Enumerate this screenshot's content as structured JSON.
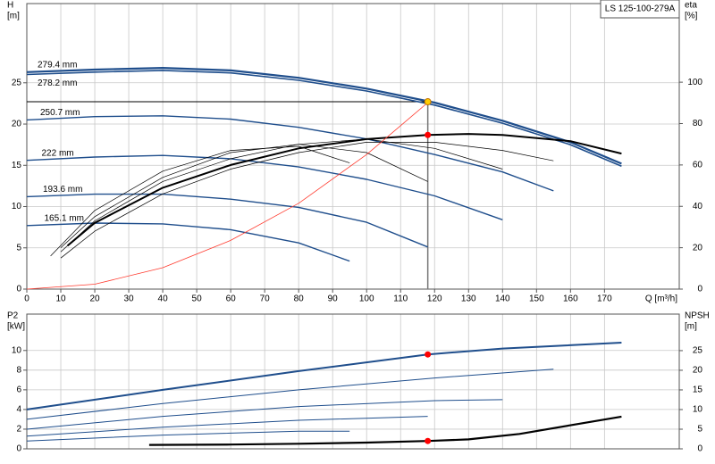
{
  "chart_data": [
    {
      "type": "line",
      "title": "LS 125-100-279A",
      "xlabel": "Q [m³/h]",
      "ylabel": "H",
      "yunit": "[m]",
      "y2label": "eta",
      "y2unit": "[%]",
      "xlim": [
        0,
        192
      ],
      "xticks": [
        0,
        10,
        20,
        30,
        40,
        50,
        60,
        70,
        80,
        90,
        100,
        110,
        120,
        130,
        140,
        150,
        160,
        170
      ],
      "ylim": [
        0,
        34.6
      ],
      "yticks": [
        0,
        5,
        10,
        15,
        20,
        25
      ],
      "y2lim": [
        0,
        138
      ],
      "y2ticks": [
        0,
        20,
        40,
        60,
        80,
        100
      ],
      "grid": true,
      "series": [
        {
          "name": "279.4 mm",
          "color": "#1f4e8c",
          "width": 2.2,
          "x": [
            0,
            20,
            40,
            60,
            80,
            100,
            120,
            140,
            160,
            175
          ],
          "values": [
            26.3,
            26.6,
            26.8,
            26.5,
            25.6,
            24.3,
            22.6,
            20.4,
            17.8,
            15.2
          ]
        },
        {
          "name": "278.2 mm",
          "color": "#1f4e8c",
          "width": 1.6,
          "x": [
            0,
            20,
            40,
            60,
            80,
            100,
            120,
            140,
            160,
            175
          ],
          "values": [
            26.0,
            26.3,
            26.5,
            26.2,
            25.3,
            24.0,
            22.3,
            20.1,
            17.5,
            14.9
          ]
        },
        {
          "name": "250.7 mm",
          "color": "#1f4e8c",
          "width": 1.4,
          "x": [
            0,
            20,
            40,
            60,
            80,
            100,
            120,
            140,
            155
          ],
          "values": [
            20.5,
            20.9,
            21.0,
            20.6,
            19.6,
            18.2,
            16.3,
            14.2,
            11.9
          ]
        },
        {
          "name": "222 mm",
          "color": "#1f4e8c",
          "width": 1.4,
          "x": [
            0,
            20,
            40,
            60,
            80,
            100,
            120,
            140
          ],
          "values": [
            15.6,
            16.0,
            16.2,
            15.8,
            14.8,
            13.3,
            11.3,
            8.4
          ]
        },
        {
          "name": "193.6 mm",
          "color": "#1f4e8c",
          "width": 1.4,
          "x": [
            0,
            20,
            40,
            60,
            80,
            100,
            118
          ],
          "values": [
            11.2,
            11.5,
            11.5,
            10.9,
            9.9,
            8.1,
            5.1
          ]
        },
        {
          "name": "165.1 mm",
          "color": "#1f4e8c",
          "width": 1.4,
          "x": [
            0,
            20,
            40,
            60,
            80,
            95
          ],
          "values": [
            7.7,
            8.0,
            7.9,
            7.2,
            5.6,
            3.4
          ]
        },
        {
          "color": "#000000",
          "width": 2,
          "axis": "y2",
          "x": [
            12,
            20,
            40,
            60,
            80,
            100,
            118,
            130,
            140,
            160,
            175
          ],
          "values": [
            21,
            32,
            49,
            60,
            68,
            72.5,
            74.5,
            75,
            74.5,
            71.5,
            65.5
          ]
        },
        {
          "color": "#000000",
          "width": 0.7,
          "axis": "y2",
          "x": [
            10,
            20,
            40,
            60,
            80,
            100,
            120,
            140,
            155
          ],
          "values": [
            15,
            28,
            46,
            58,
            66,
            71,
            71,
            67,
            62
          ]
        },
        {
          "color": "#000000",
          "width": 0.7,
          "axis": "y2",
          "x": [
            10,
            20,
            40,
            60,
            80,
            100,
            120,
            140
          ],
          "values": [
            18,
            33,
            52,
            63,
            70,
            72.5,
            68,
            58
          ]
        },
        {
          "color": "#000000",
          "width": 0.7,
          "axis": "y2",
          "x": [
            10,
            20,
            40,
            60,
            80,
            100,
            118
          ],
          "values": [
            20,
            35,
            54,
            66,
            70,
            66,
            52
          ]
        },
        {
          "color": "#000000",
          "width": 0.7,
          "axis": "y2",
          "x": [
            7,
            20,
            40,
            60,
            80,
            95
          ],
          "values": [
            16,
            38,
            57,
            67,
            69,
            61
          ]
        },
        {
          "color": "#ff3b2f",
          "width": 0.8,
          "x": [
            0,
            20,
            40,
            60,
            80,
            100,
            118
          ],
          "values": [
            0,
            0.6,
            2.6,
            5.9,
            10.4,
            16.3,
            22.6
          ]
        }
      ],
      "duty_point": {
        "q": 118,
        "h": 22.7,
        "eta": 74.5
      }
    },
    {
      "type": "line",
      "ylabel": "P2",
      "yunit": "[kW]",
      "y2label": "NPSH",
      "y2unit": "[m]",
      "xlim": [
        0,
        192
      ],
      "xticks": [
        0,
        10,
        20,
        30,
        40,
        50,
        60,
        70,
        80,
        90,
        100,
        110,
        120,
        130,
        140,
        150,
        160,
        170
      ],
      "ylim": [
        0,
        13.7
      ],
      "yticks": [
        0,
        2,
        4,
        6,
        8,
        10
      ],
      "y2lim": [
        0,
        34.3
      ],
      "y2ticks": [
        0,
        5,
        10,
        15,
        20,
        25
      ],
      "grid": true,
      "series": [
        {
          "color": "#1f4e8c",
          "width": 2,
          "x": [
            0,
            40,
            80,
            118,
            140,
            175
          ],
          "values": [
            4.0,
            6.0,
            7.9,
            9.6,
            10.2,
            10.8
          ]
        },
        {
          "color": "#1f4e8c",
          "width": 1,
          "x": [
            0,
            40,
            80,
            120,
            155
          ],
          "values": [
            3.0,
            4.6,
            6.0,
            7.2,
            8.1
          ]
        },
        {
          "color": "#1f4e8c",
          "width": 1,
          "x": [
            0,
            40,
            80,
            120,
            140
          ],
          "values": [
            2.0,
            3.3,
            4.3,
            4.9,
            5.0
          ]
        },
        {
          "color": "#1f4e8c",
          "width": 1,
          "x": [
            0,
            40,
            80,
            118
          ],
          "values": [
            1.3,
            2.2,
            2.9,
            3.3
          ]
        },
        {
          "color": "#1f4e8c",
          "width": 1,
          "x": [
            0,
            40,
            80,
            95
          ],
          "values": [
            0.8,
            1.4,
            1.8,
            1.8
          ]
        },
        {
          "color": "#000000",
          "width": 2.2,
          "axis": "y2",
          "x": [
            36,
            60,
            80,
            100,
            118,
            130,
            145,
            160,
            175
          ],
          "values": [
            1,
            1.1,
            1.3,
            1.6,
            2.0,
            2.4,
            3.8,
            6,
            8.2
          ]
        }
      ],
      "duty_point": {
        "q": 118,
        "p2": 9.6,
        "npsh": 2.0
      }
    }
  ]
}
